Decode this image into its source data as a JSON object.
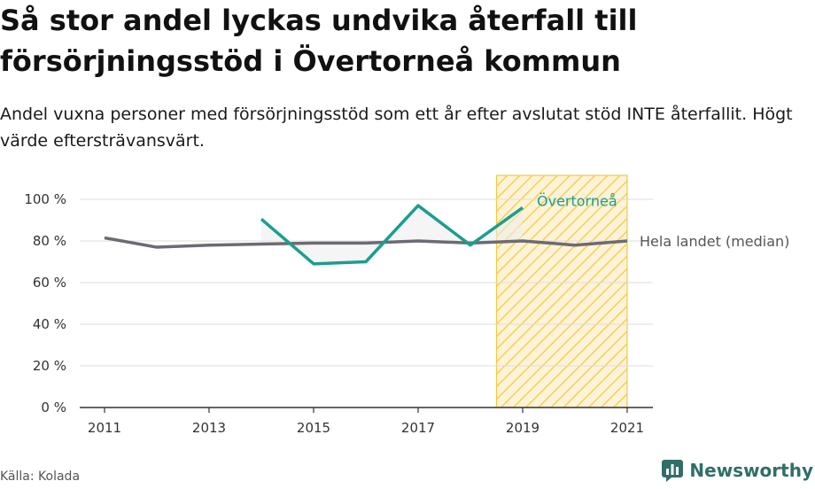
{
  "title": "Så stor andel lyckas undvika återfall till försörjningsstöd i Övertorneå kommun",
  "subtitle": "Andel vuxna personer med försörjningsstöd som ett år efter avslutat stöd INTE återfallit. Högt värde eftersträvansvärt.",
  "source": "Källa: Kolada",
  "brand": "Newsworthy",
  "colors": {
    "municipality": "#1a9e8f",
    "national": "#6b6b73",
    "highlight": "#f5c842",
    "grid": "#dddddd"
  },
  "chart_data": {
    "type": "line",
    "x_ticks": [
      2011,
      2013,
      2015,
      2017,
      2019,
      2021
    ],
    "y_ticks": [
      0,
      20,
      40,
      60,
      80,
      100
    ],
    "y_tick_labels": [
      "0 %",
      "20 %",
      "40 %",
      "60 %",
      "80 %",
      "100 %"
    ],
    "xlim": [
      2011,
      2021
    ],
    "ylim": [
      0,
      100
    ],
    "highlight_range": [
      2018.5,
      2021
    ],
    "series": [
      {
        "name": "Hela landet (median)",
        "x": [
          2011,
          2012,
          2013,
          2014,
          2015,
          2016,
          2017,
          2018,
          2019,
          2020,
          2021
        ],
        "values": [
          81.5,
          77,
          78,
          78.5,
          79,
          79,
          80,
          79,
          80,
          78,
          80
        ]
      },
      {
        "name": "Övertorneå",
        "x": [
          2014,
          2015,
          2016,
          2017,
          2018,
          2019
        ],
        "values": [
          90.5,
          69,
          70,
          97,
          78,
          96
        ]
      }
    ]
  }
}
